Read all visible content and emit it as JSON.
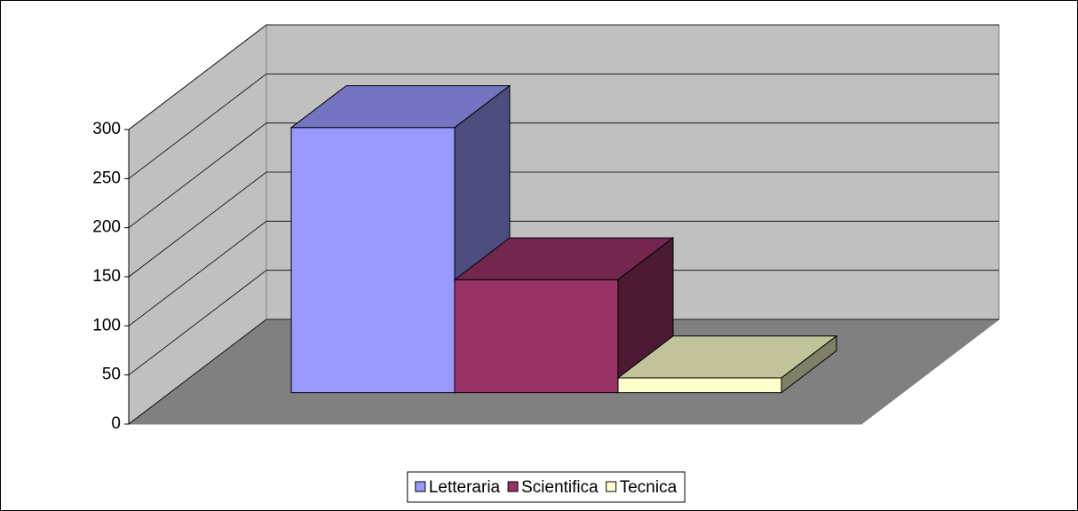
{
  "chart_data": {
    "type": "bar3d",
    "categories": [
      null
    ],
    "series": [
      {
        "name": "Letteraria",
        "color": "#9999ff",
        "values": [
          270
        ]
      },
      {
        "name": "Scientifica",
        "color": "#993366",
        "values": [
          115
        ]
      },
      {
        "name": "Tecnica",
        "color": "#ffffcc",
        "values": [
          15
        ]
      }
    ],
    "ylim": [
      0,
      300
    ],
    "yticks": [
      0,
      50,
      100,
      150,
      200,
      250,
      300
    ],
    "grid": true,
    "legend": "bottom"
  }
}
